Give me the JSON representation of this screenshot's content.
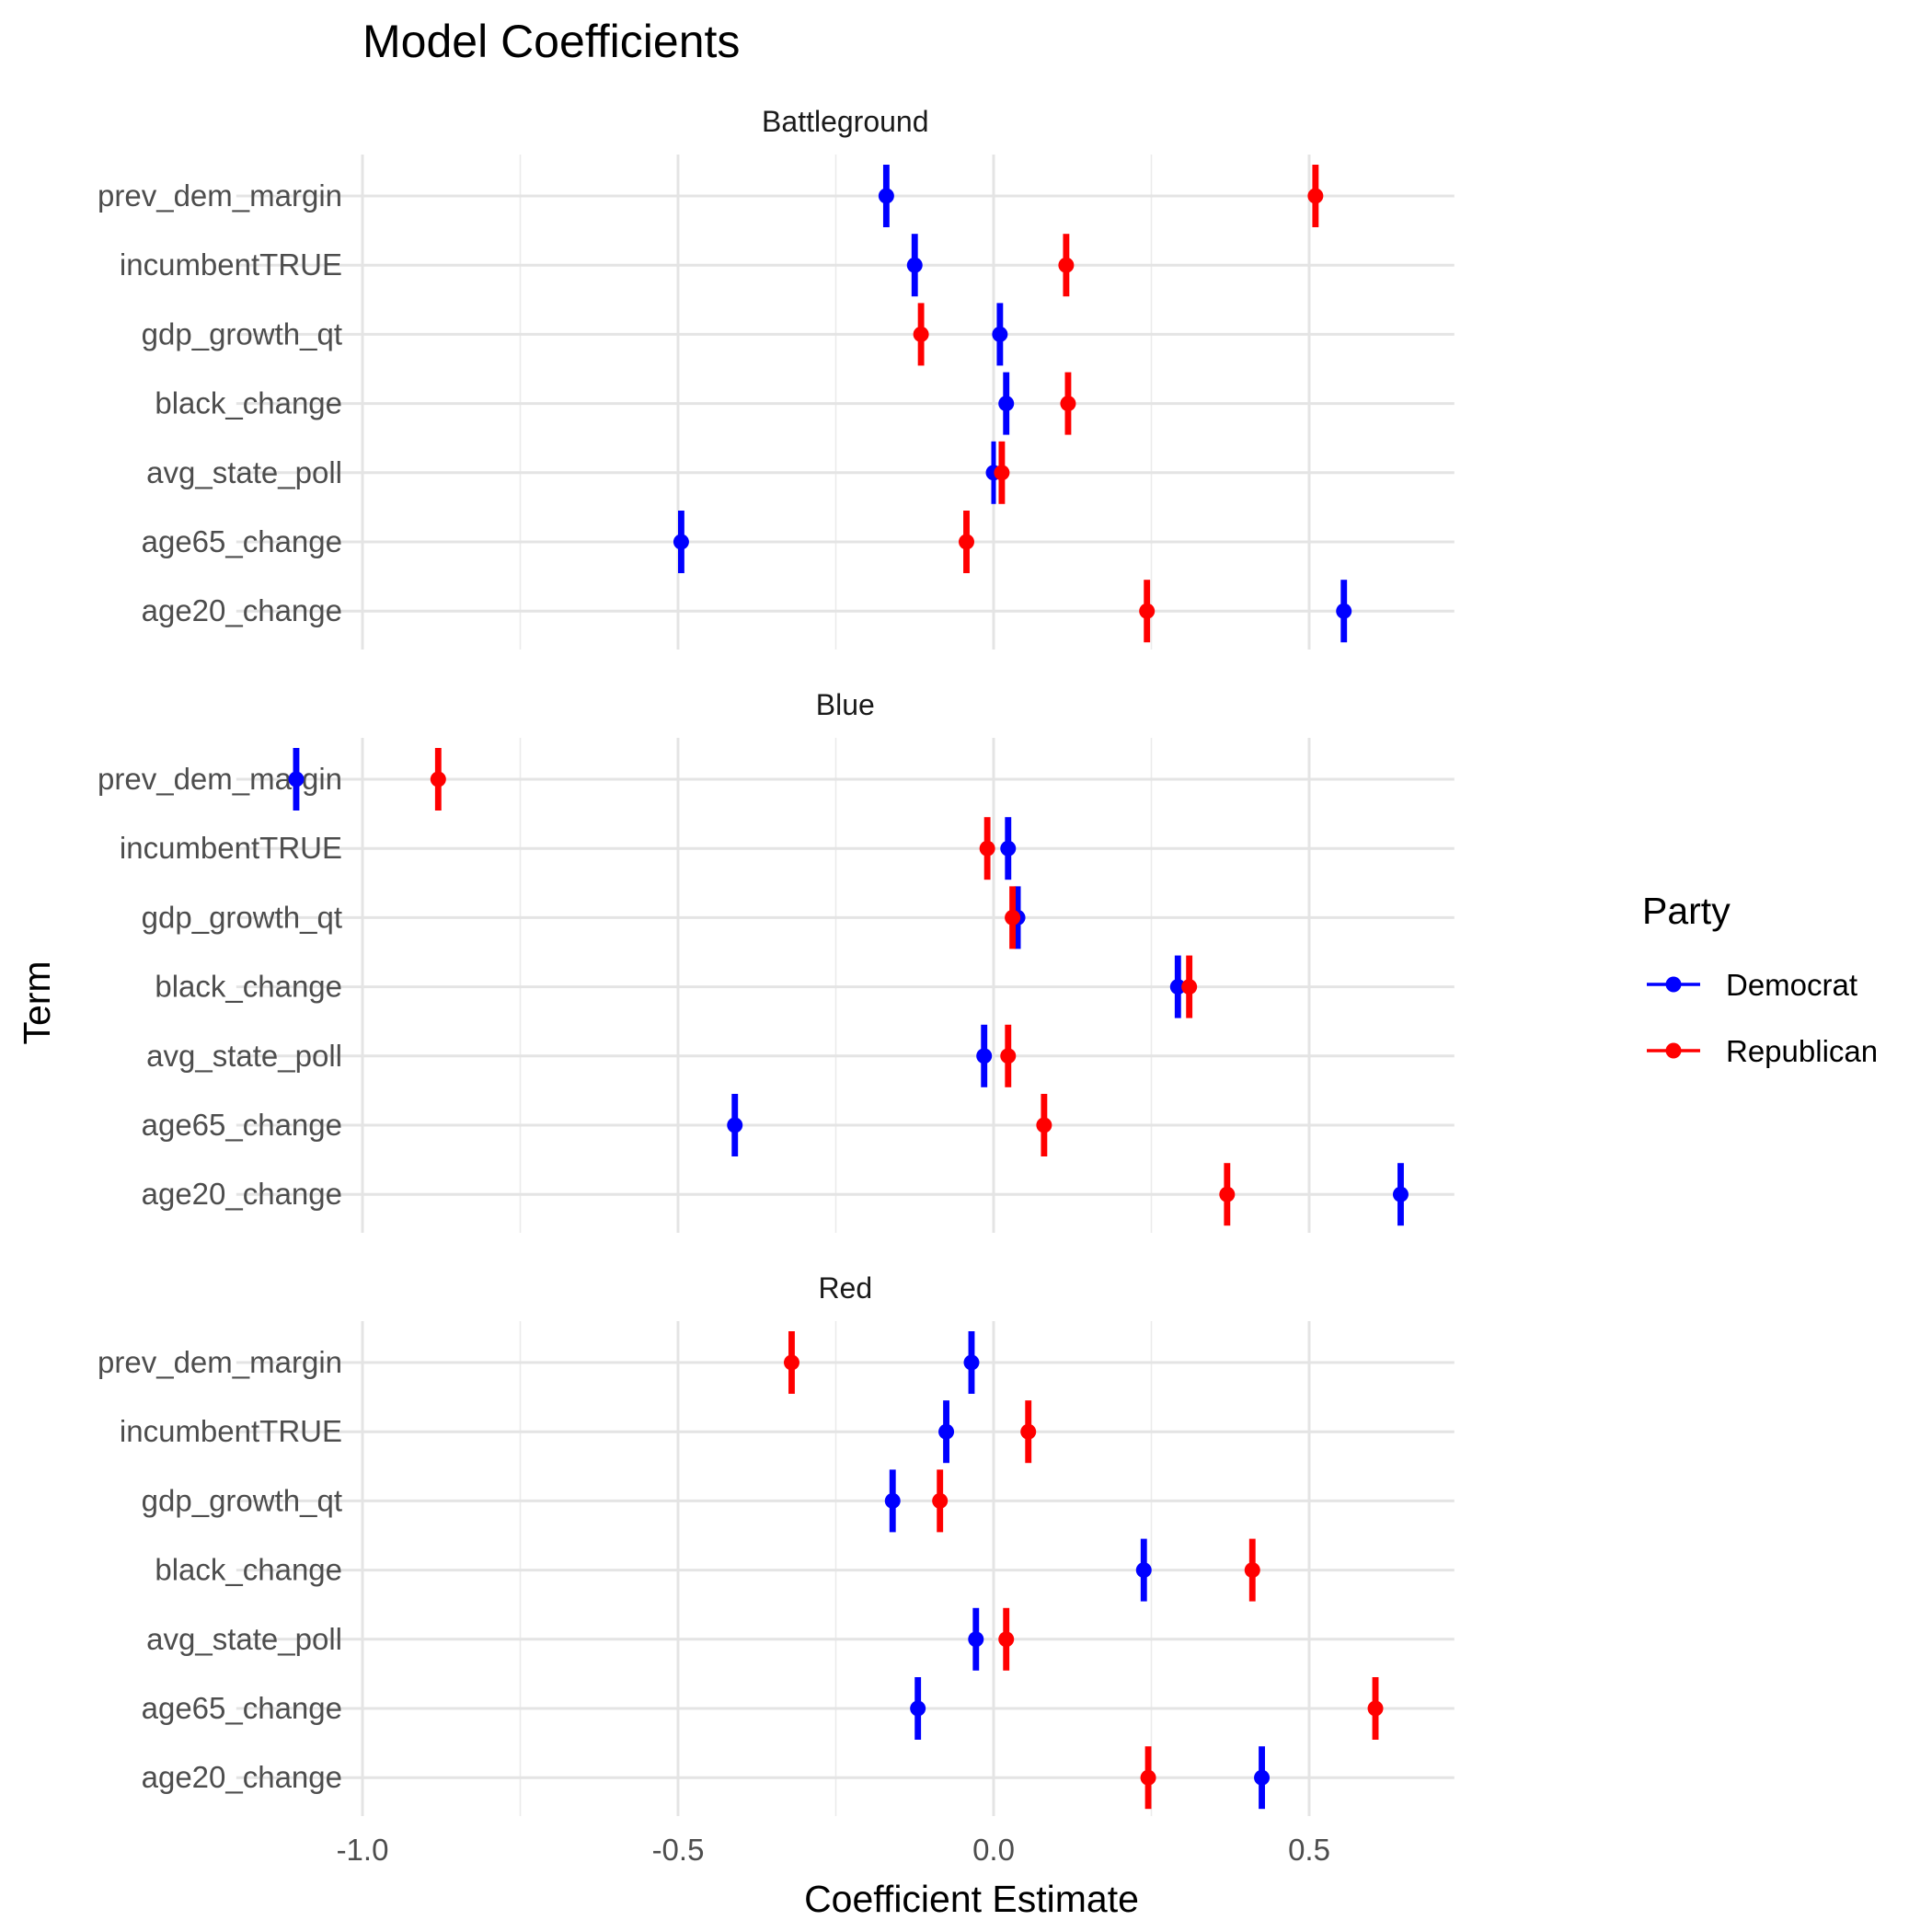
{
  "chart_data": {
    "type": "scatter",
    "subtype": "point-range",
    "title": "Model Coefficients",
    "xlabel": "Coefficient Estimate",
    "ylabel": "Term",
    "xlim": [
      -1.2,
      0.73
    ],
    "x_ticks": [
      -1.0,
      -0.5,
      0.0,
      0.5
    ],
    "x_tick_labels": [
      "-1.0",
      "-0.5",
      "0.0",
      "0.5"
    ],
    "terms": [
      "prev_dem_margin",
      "incumbentTRUE",
      "gdp_growth_qt",
      "black_change",
      "avg_state_poll",
      "age65_change",
      "age20_change"
    ],
    "grid": true,
    "legend": {
      "title": "Party",
      "position": "right",
      "items": [
        {
          "label": "Democrat",
          "color": "#0000FF"
        },
        {
          "label": "Republican",
          "color": "#FF0000"
        }
      ]
    },
    "facets": [
      {
        "name": "Battleground",
        "series": [
          {
            "name": "Democrat",
            "color": "#0000FF",
            "estimates": [
              -0.17,
              -0.125,
              0.01,
              0.02,
              0.0,
              -0.495,
              0.555
            ],
            "intervals": [
              [
                -0.175,
                -0.165
              ],
              [
                -0.13,
                -0.12
              ],
              [
                0.005,
                0.015
              ],
              [
                0.015,
                0.025
              ],
              [
                -0.003,
                0.003
              ],
              [
                -0.5,
                -0.49
              ],
              [
                0.55,
                0.56
              ]
            ]
          },
          {
            "name": "Republican",
            "color": "#FF0000",
            "estimates": [
              0.51,
              0.115,
              -0.115,
              0.118,
              0.013,
              -0.043,
              0.243
            ],
            "intervals": [
              [
                0.505,
                0.515
              ],
              [
                0.11,
                0.12
              ],
              [
                -0.12,
                -0.11
              ],
              [
                0.113,
                0.123
              ],
              [
                0.008,
                0.018
              ],
              [
                -0.048,
                -0.038
              ],
              [
                0.238,
                0.248
              ]
            ]
          }
        ]
      },
      {
        "name": "Blue",
        "series": [
          {
            "name": "Democrat",
            "color": "#0000FF",
            "estimates": [
              -1.105,
              0.023,
              0.038,
              0.292,
              -0.015,
              -0.41,
              0.645
            ],
            "intervals": [
              [
                -1.11,
                -1.1
              ],
              [
                0.018,
                0.028
              ],
              [
                0.033,
                0.043
              ],
              [
                0.287,
                0.297
              ],
              [
                -0.02,
                -0.01
              ],
              [
                -0.415,
                -0.405
              ],
              [
                0.64,
                0.65
              ]
            ]
          },
          {
            "name": "Republican",
            "color": "#FF0000",
            "estimates": [
              -0.88,
              -0.01,
              0.03,
              0.31,
              0.023,
              0.08,
              0.37
            ],
            "intervals": [
              [
                -0.885,
                -0.875
              ],
              [
                -0.015,
                -0.005
              ],
              [
                0.025,
                0.035
              ],
              [
                0.305,
                0.315
              ],
              [
                0.018,
                0.028
              ],
              [
                0.075,
                0.085
              ],
              [
                0.365,
                0.375
              ]
            ]
          }
        ]
      },
      {
        "name": "Red",
        "series": [
          {
            "name": "Democrat",
            "color": "#0000FF",
            "estimates": [
              -0.035,
              -0.075,
              -0.16,
              0.238,
              -0.028,
              -0.12,
              0.425
            ],
            "intervals": [
              [
                -0.04,
                -0.03
              ],
              [
                -0.08,
                -0.07
              ],
              [
                -0.165,
                -0.155
              ],
              [
                0.233,
                0.243
              ],
              [
                -0.033,
                -0.023
              ],
              [
                -0.125,
                -0.115
              ],
              [
                0.42,
                0.43
              ]
            ]
          },
          {
            "name": "Republican",
            "color": "#FF0000",
            "estimates": [
              -0.32,
              0.055,
              -0.085,
              0.41,
              0.02,
              0.605,
              0.245
            ],
            "intervals": [
              [
                -0.325,
                -0.315
              ],
              [
                0.05,
                0.06
              ],
              [
                -0.09,
                -0.08
              ],
              [
                0.405,
                0.415
              ],
              [
                0.015,
                0.025
              ],
              [
                0.6,
                0.61
              ],
              [
                0.24,
                0.25
              ]
            ]
          }
        ]
      }
    ]
  }
}
